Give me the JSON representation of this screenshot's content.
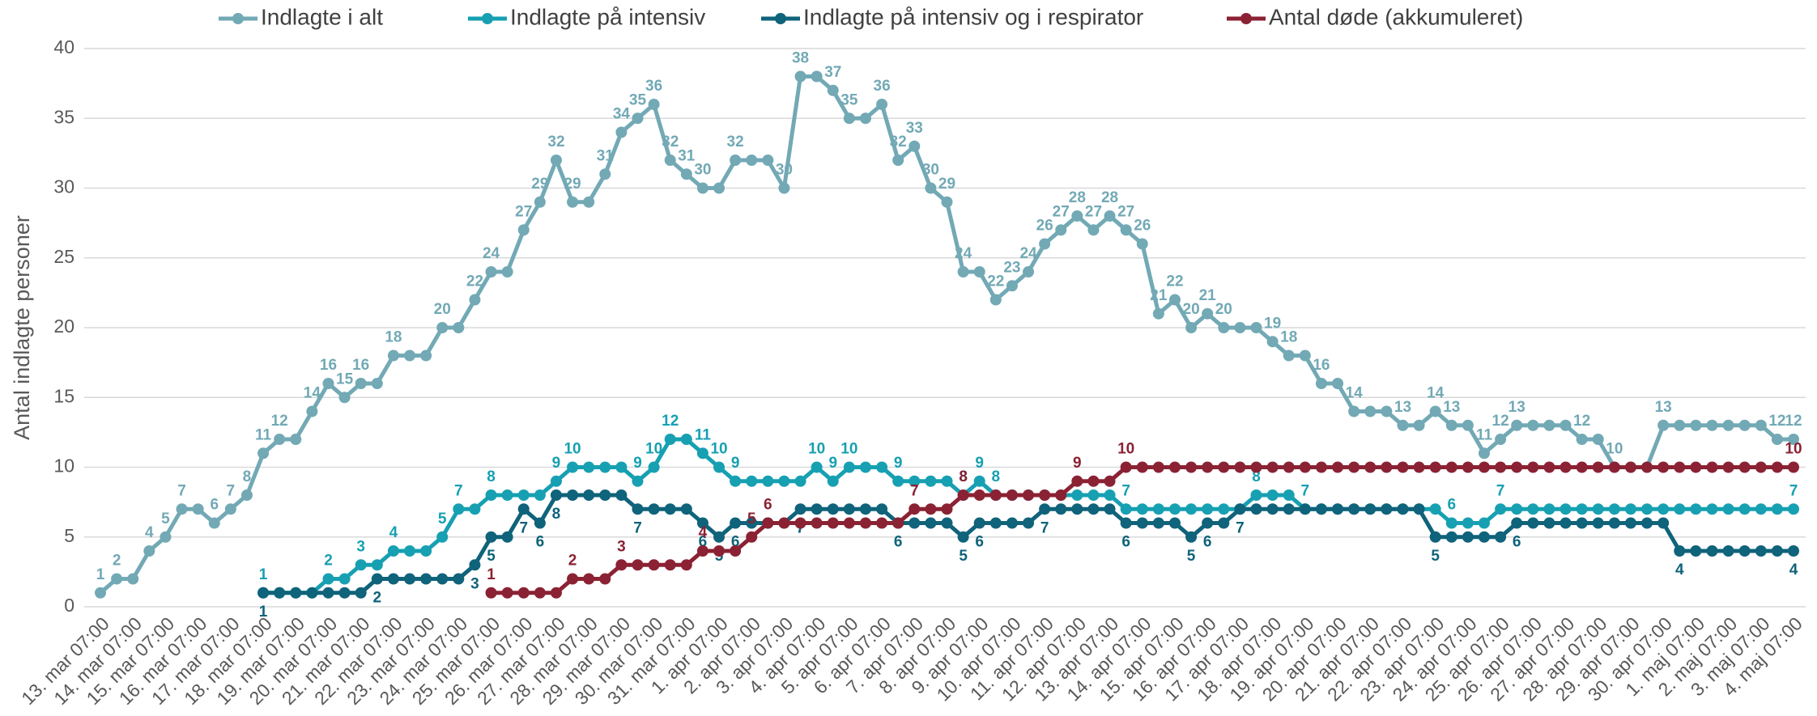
{
  "chart_data": {
    "type": "line",
    "y_label": "Antal indlagte personer",
    "categories": [
      "13. mar 07:00",
      null,
      "14. mar 07:00",
      null,
      "15. mar 07:00",
      null,
      "16. mar 07:00",
      null,
      "17. mar 07:00",
      null,
      "18. mar 07:00",
      null,
      "19. mar 07:00",
      null,
      "20. mar 07:00",
      null,
      "21. mar 07:00",
      null,
      "22. mar 07:00",
      null,
      "23. mar 07:00",
      null,
      "24. mar 07:00",
      null,
      "25. mar 07:00",
      null,
      "26. mar 07:00",
      null,
      "27. mar 07:00",
      null,
      "28. mar 07:00",
      null,
      "29. mar 07:00",
      null,
      "30. mar 07:00",
      null,
      "31. mar 07:00",
      null,
      "1. apr 07:00",
      null,
      "2. apr 07:00",
      null,
      "3. apr 07:00",
      null,
      "4. apr 07:00",
      null,
      "5. apr 07:00",
      null,
      "6. apr 07:00",
      null,
      "7. apr 07:00",
      null,
      "8. apr 07:00",
      null,
      "9. apr 07:00",
      null,
      "10. apr 07:00",
      null,
      "11. apr 07:00",
      null,
      "12. apr 07:00",
      null,
      "13. apr 07:00",
      null,
      "14. apr 07:00",
      null,
      "15. apr 07:00",
      null,
      "16. apr 07:00",
      null,
      "17. apr 07:00",
      null,
      "18. apr 07:00",
      null,
      "19. apr 07:00",
      null,
      "20. apr 07:00",
      null,
      "21. apr 07:00",
      null,
      "22. apr 07:00",
      null,
      "23. apr 07:00",
      null,
      "24. apr 07:00",
      null,
      "25. apr 07:00",
      null,
      "26. apr 07:00",
      null,
      "27. apr 07:00",
      null,
      "28. apr 07:00",
      null,
      "29. apr 07:00",
      null,
      "30. apr 07:00",
      null,
      "1. maj 07:00",
      null,
      "2. maj 07:00",
      null,
      "3. maj 07:00",
      null,
      "4. maj 07:00"
    ],
    "series": [
      {
        "name": "Indlagte i alt",
        "color": "#72a9b5",
        "label_position": "above",
        "values": [
          1,
          2,
          2,
          4,
          5,
          7,
          7,
          6,
          7,
          8,
          11,
          12,
          12,
          14,
          16,
          15,
          16,
          16,
          18,
          18,
          18,
          20,
          20,
          22,
          24,
          24,
          27,
          29,
          32,
          29,
          29,
          31,
          34,
          35,
          36,
          32,
          31,
          30,
          30,
          32,
          32,
          32,
          30,
          38,
          38,
          37,
          35,
          35,
          36,
          32,
          33,
          30,
          29,
          24,
          24,
          22,
          23,
          24,
          26,
          27,
          28,
          27,
          28,
          27,
          26,
          21,
          22,
          20,
          21,
          20,
          20,
          20,
          19,
          18,
          18,
          16,
          16,
          14,
          14,
          14,
          13,
          13,
          14,
          13,
          13,
          11,
          12,
          13,
          13,
          13,
          13,
          12,
          12,
          10,
          10,
          10,
          13,
          13,
          13,
          13,
          13,
          13,
          13,
          12,
          12
        ]
      },
      {
        "name": "Indlagte på intensiv",
        "color": "#17a0b2",
        "label_position": "above",
        "values": [
          null,
          null,
          null,
          null,
          null,
          null,
          null,
          null,
          null,
          null,
          1,
          1,
          1,
          1,
          2,
          2,
          3,
          3,
          4,
          4,
          4,
          5,
          7,
          7,
          8,
          8,
          8,
          8,
          9,
          10,
          10,
          10,
          10,
          9,
          10,
          12,
          12,
          11,
          10,
          9,
          9,
          9,
          9,
          9,
          10,
          9,
          10,
          10,
          10,
          9,
          9,
          9,
          9,
          8,
          9,
          8,
          8,
          8,
          8,
          8,
          8,
          8,
          8,
          7,
          7,
          7,
          7,
          7,
          7,
          7,
          7,
          8,
          8,
          8,
          7,
          7,
          7,
          7,
          7,
          7,
          7,
          7,
          7,
          6,
          6,
          6,
          7,
          7,
          7,
          7,
          7,
          7,
          7,
          7,
          7,
          7,
          7,
          7,
          7,
          7,
          7,
          7,
          7,
          7,
          7
        ]
      },
      {
        "name": "Indlagte på intensiv og i respirator",
        "color": "#0f637a",
        "label_position": "below",
        "values": [
          null,
          null,
          null,
          null,
          null,
          null,
          null,
          null,
          null,
          null,
          1,
          1,
          1,
          1,
          1,
          1,
          1,
          2,
          2,
          2,
          2,
          2,
          2,
          3,
          5,
          5,
          7,
          6,
          8,
          8,
          8,
          8,
          8,
          7,
          7,
          7,
          7,
          6,
          5,
          6,
          6,
          6,
          6,
          7,
          7,
          7,
          7,
          7,
          7,
          6,
          6,
          6,
          6,
          5,
          6,
          6,
          6,
          6,
          7,
          7,
          7,
          7,
          7,
          6,
          6,
          6,
          6,
          5,
          6,
          6,
          7,
          7,
          7,
          7,
          7,
          7,
          7,
          7,
          7,
          7,
          7,
          7,
          5,
          5,
          5,
          5,
          5,
          6,
          6,
          6,
          6,
          6,
          6,
          6,
          6,
          6,
          6,
          4,
          4,
          4,
          4,
          4,
          4,
          4,
          4
        ]
      },
      {
        "name": "Antal døde (akkumuleret)",
        "color": "#8b2234",
        "label_position": "above",
        "values": [
          null,
          null,
          null,
          null,
          null,
          null,
          null,
          null,
          null,
          null,
          null,
          null,
          null,
          null,
          null,
          null,
          null,
          null,
          null,
          null,
          null,
          null,
          null,
          null,
          1,
          1,
          1,
          1,
          1,
          2,
          2,
          2,
          3,
          3,
          3,
          3,
          3,
          4,
          4,
          4,
          5,
          6,
          6,
          6,
          6,
          6,
          6,
          6,
          6,
          6,
          7,
          7,
          7,
          8,
          8,
          8,
          8,
          8,
          8,
          8,
          9,
          9,
          9,
          10,
          10,
          10,
          10,
          10,
          10,
          10,
          10,
          10,
          10,
          10,
          10,
          10,
          10,
          10,
          10,
          10,
          10,
          10,
          10,
          10,
          10,
          10,
          10,
          10,
          10,
          10,
          10,
          10,
          10,
          10,
          10,
          10,
          10,
          10,
          10,
          10,
          10,
          10,
          10,
          10,
          10
        ]
      }
    ],
    "ylim": [
      0,
      40
    ],
    "yticks": [
      0,
      5,
      10,
      15,
      20,
      25,
      30,
      35,
      40
    ],
    "grid": true,
    "legend": "top"
  }
}
